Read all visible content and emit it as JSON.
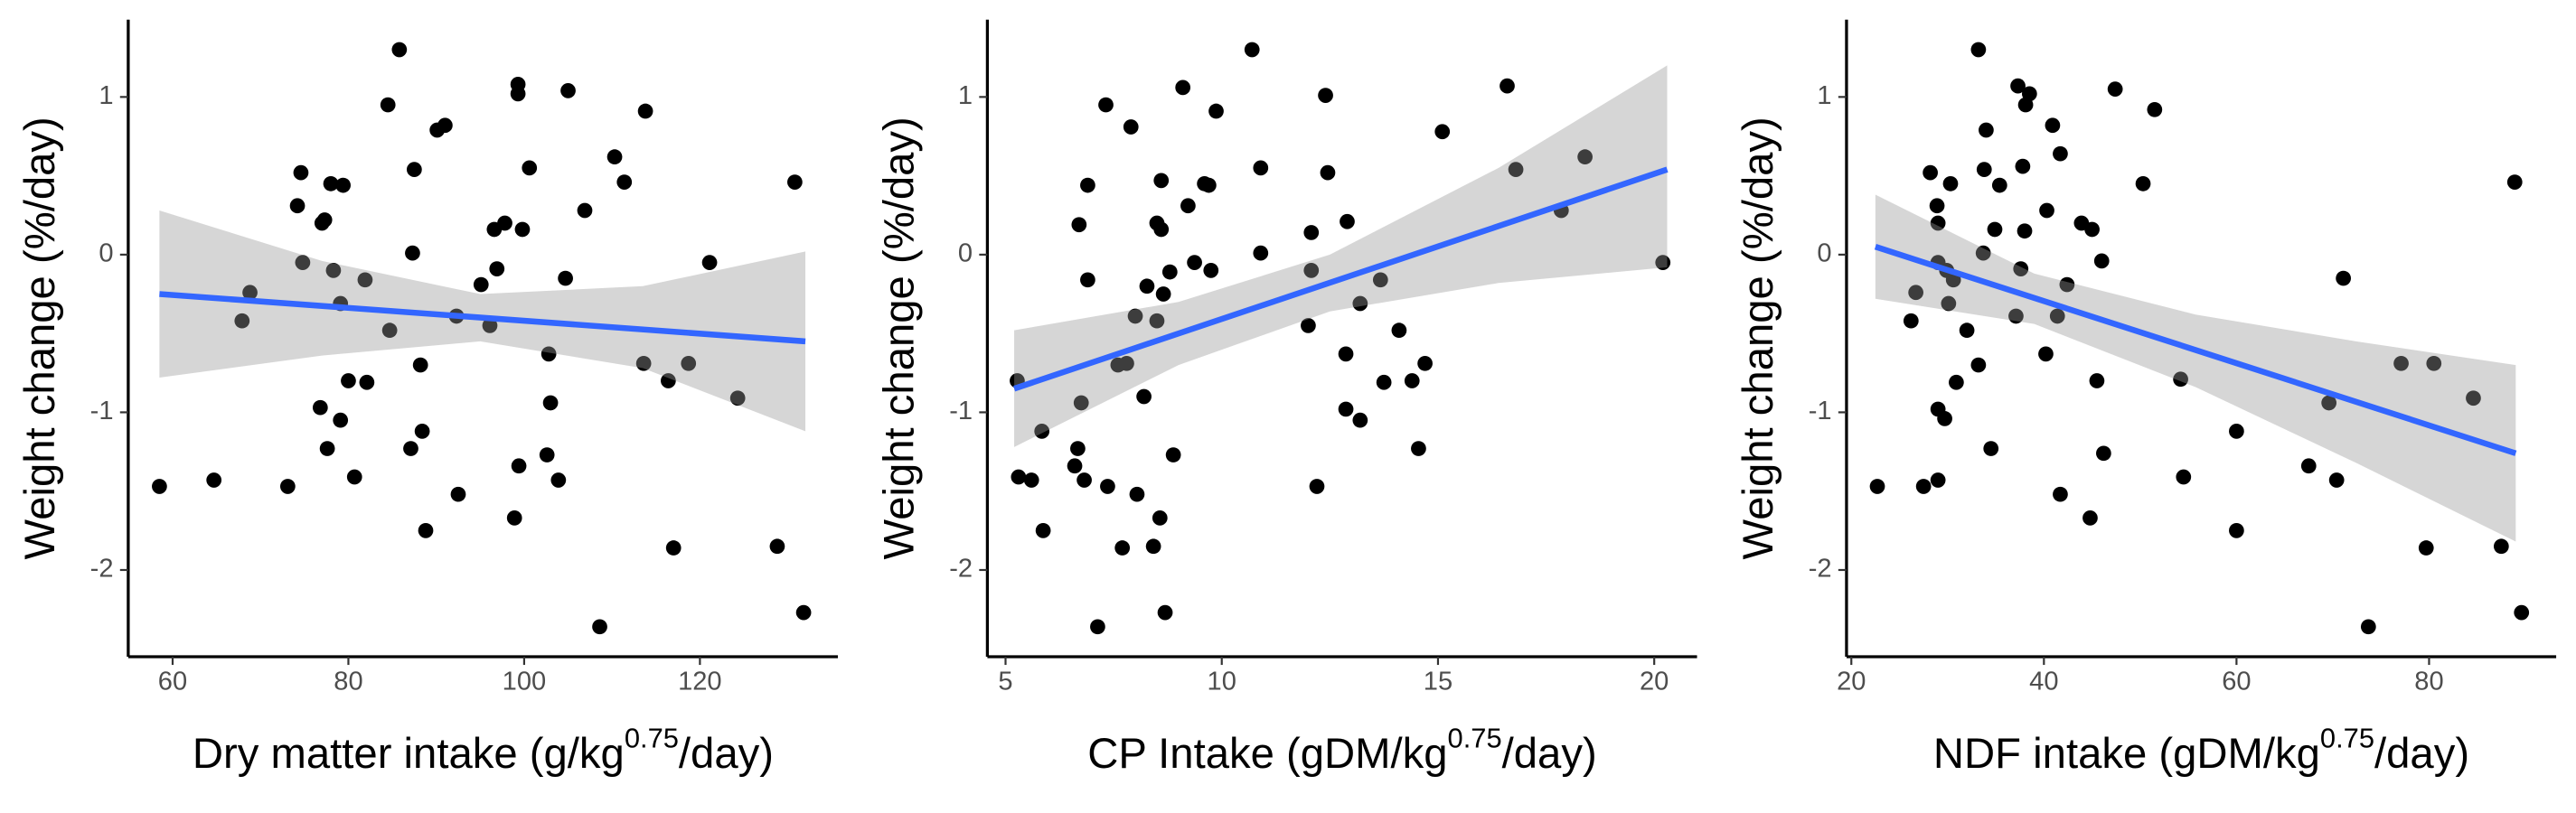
{
  "chart_data": [
    {
      "type": "scatter",
      "ylabel": "Weight change (%/day)",
      "xlabel": {
        "text": "Dry matter intake (g/kg",
        "superscript": "0.75",
        "suffix": "/day)"
      },
      "xlim": [
        54.95,
        135.7
      ],
      "xticks": [
        60,
        80,
        100,
        120
      ],
      "ylim": [
        -2.55,
        1.49
      ],
      "yticks": [
        -2,
        -1,
        0,
        1
      ],
      "color": "#000000",
      "fit_color": "#3366FF",
      "band_color": "#999999",
      "x": [
        58.5,
        64.7,
        67.9,
        68.8,
        73.1,
        74.2,
        74.6,
        74.8,
        77,
        77.3,
        76.8,
        77.6,
        78,
        79.4,
        78.3,
        79.1,
        79.1,
        80,
        80.7,
        81.9,
        82.1,
        84.5,
        84.7,
        85.8,
        87.1,
        87.3,
        87.5,
        88.2,
        88.4,
        88.8,
        90.1,
        91,
        92.3,
        92.5,
        95.1,
        96.1,
        96.6,
        96.9,
        97.8,
        98.9,
        99.3,
        99.3,
        99.4,
        99.8,
        100.6,
        102.8,
        102.6,
        103,
        103.9,
        104.7,
        105,
        106.9,
        108.6,
        110.3,
        111.4,
        113.6,
        113.8,
        116.4,
        117,
        118.7,
        121.1,
        124.3,
        128.8,
        130.8,
        131.8
      ],
      "y": [
        -1.47,
        -1.43,
        -0.42,
        -0.24,
        -1.47,
        0.31,
        0.52,
        -0.05,
        0.2,
        0.22,
        -0.97,
        -1.23,
        0.45,
        0.44,
        -0.1,
        -0.31,
        -1.05,
        -0.8,
        -1.41,
        -0.16,
        -0.81,
        0.95,
        -0.48,
        1.3,
        -1.23,
        0.01,
        0.54,
        -0.7,
        -1.12,
        -1.75,
        0.79,
        0.82,
        -0.39,
        -1.52,
        -0.19,
        -0.45,
        0.16,
        -0.09,
        0.2,
        -1.67,
        1.08,
        1.02,
        -1.34,
        0.16,
        0.55,
        -0.63,
        -1.27,
        -0.94,
        -1.43,
        -0.15,
        1.04,
        0.28,
        -2.36,
        0.62,
        0.46,
        -0.69,
        0.91,
        -0.8,
        -1.86,
        -0.69,
        -0.05,
        -0.91,
        -1.85,
        0.46,
        -2.27
      ],
      "fit": {
        "x": [
          58.5,
          132
        ],
        "y": [
          -0.25,
          -0.55
        ]
      },
      "band": {
        "x": [
          58.5,
          77,
          95,
          113.5,
          132
        ],
        "upper": [
          0.28,
          -0.04,
          -0.25,
          -0.2,
          0.02
        ],
        "lower": [
          -0.78,
          -0.64,
          -0.55,
          -0.72,
          -1.12
        ]
      }
    },
    {
      "type": "scatter",
      "ylabel": "Weight change (%/day)",
      "xlabel": {
        "text": "CP Intake (gDM/kg",
        "superscript": "0.75",
        "suffix": "/day)"
      },
      "xlim": [
        4.58,
        20.99
      ],
      "xticks": [
        5,
        10,
        15,
        20
      ],
      "ylim": [
        -2.55,
        1.49
      ],
      "yticks": [
        -2,
        -1,
        0,
        1
      ],
      "color": "#000000",
      "fit_color": "#3366FF",
      "band_color": "#999999",
      "x": [
        5.27,
        5.3,
        5.6,
        5.84,
        5.87,
        6.6,
        6.67,
        6.7,
        6.75,
        6.82,
        6.9,
        6.9,
        7.13,
        7.32,
        7.36,
        7.6,
        7.7,
        7.8,
        7.9,
        8,
        8.04,
        8.2,
        8.27,
        8.42,
        8.5,
        8.5,
        8.57,
        8.6,
        8.6,
        8.65,
        8.69,
        8.8,
        8.88,
        9.1,
        9.22,
        9.37,
        9.6,
        9.7,
        9.75,
        9.87,
        10.7,
        10.9,
        10.9,
        12,
        12.07,
        12.07,
        12.2,
        12.4,
        12.45,
        12.87,
        12.9,
        12.87,
        13.2,
        13.2,
        13.67,
        13.75,
        14.1,
        14.4,
        14.55,
        14.7,
        15.1,
        16.6,
        16.8,
        17.85,
        18.4,
        20.2
      ],
      "y": [
        -0.8,
        -1.41,
        -1.43,
        -1.12,
        -1.75,
        -1.34,
        -1.23,
        0.19,
        -0.94,
        -1.43,
        0.44,
        -0.16,
        -2.36,
        0.95,
        -1.47,
        -0.7,
        -1.86,
        -0.69,
        0.81,
        -0.39,
        -1.52,
        -0.9,
        -0.2,
        -1.85,
        -0.42,
        0.2,
        -1.67,
        0.47,
        0.16,
        -0.25,
        -2.27,
        -0.11,
        -1.27,
        1.06,
        0.31,
        -0.05,
        0.45,
        0.44,
        -0.1,
        0.91,
        1.3,
        0.55,
        0.01,
        -0.45,
        0.14,
        -0.1,
        -1.47,
        1.01,
        0.52,
        -0.63,
        0.21,
        -0.98,
        -1.05,
        -0.31,
        -0.16,
        -0.81,
        -0.48,
        -0.8,
        -1.23,
        -0.69,
        0.78,
        1.07,
        0.54,
        0.28,
        0.62,
        -0.05
      ],
      "fit": {
        "x": [
          5.2,
          20.3
        ],
        "y": [
          -0.85,
          0.54
        ]
      },
      "band": {
        "x": [
          5.2,
          9,
          12.5,
          16.4,
          20.3
        ],
        "upper": [
          -0.48,
          -0.3,
          0.0,
          0.55,
          1.2
        ],
        "lower": [
          -1.22,
          -0.7,
          -0.36,
          -0.18,
          -0.08
        ]
      }
    },
    {
      "type": "scatter",
      "ylabel": "Weight change (%/day)",
      "xlabel": {
        "text": "NDF intake (gDM/kg",
        "superscript": "0.75",
        "suffix": "/day)"
      },
      "xlim": [
        19.5,
        93.2
      ],
      "xticks": [
        20,
        40,
        60,
        80
      ],
      "ylim": [
        -2.55,
        1.49
      ],
      "yticks": [
        -2,
        -1,
        0,
        1
      ],
      "color": "#000000",
      "fit_color": "#3366FF",
      "band_color": "#999999",
      "x": [
        22.7,
        26.7,
        26.2,
        27.5,
        28.2,
        28.9,
        29,
        29,
        29,
        29,
        29.7,
        29.9,
        30.1,
        30.3,
        30.6,
        30.9,
        32,
        33.2,
        33.2,
        33.7,
        33.8,
        34,
        34.5,
        34.9,
        35.4,
        37.1,
        37.3,
        37.6,
        37.8,
        38,
        38.1,
        38.5,
        40.2,
        40.3,
        40.9,
        41.4,
        41.7,
        41.7,
        42.4,
        43.9,
        44.8,
        45,
        45.5,
        46,
        46.2,
        47.4,
        50.3,
        51.5,
        54.2,
        54.5,
        60,
        60,
        67.5,
        69.6,
        70.4,
        71.1,
        73.7,
        77.1,
        79.7,
        80.5,
        84.6,
        87.5,
        88.9,
        89.6
      ],
      "y": [
        -1.47,
        -0.24,
        -0.42,
        -1.47,
        0.52,
        0.31,
        0.2,
        -0.05,
        -0.98,
        -1.43,
        -1.04,
        -0.1,
        -0.31,
        0.45,
        -0.16,
        -0.81,
        -0.48,
        1.3,
        -0.7,
        0.01,
        0.54,
        0.79,
        -1.23,
        0.16,
        0.44,
        -0.39,
        1.07,
        -0.09,
        0.56,
        0.15,
        0.95,
        1.02,
        -0.63,
        0.28,
        0.82,
        -0.39,
        -1.52,
        0.64,
        -0.19,
        0.2,
        -1.67,
        0.16,
        -0.8,
        -0.04,
        -1.26,
        1.05,
        0.45,
        0.92,
        -0.79,
        -1.41,
        -1.12,
        -1.75,
        -1.34,
        -0.94,
        -1.43,
        -0.15,
        -2.36,
        -0.69,
        -1.86,
        -0.69,
        -0.91,
        -1.85,
        0.46,
        -2.27
      ],
      "fit": {
        "x": [
          22.5,
          89
        ],
        "y": [
          0.05,
          -1.26
        ]
      },
      "band": {
        "x": [
          22.5,
          39,
          55.75,
          72.4,
          89
        ],
        "upper": [
          0.38,
          -0.12,
          -0.38,
          -0.55,
          -0.7
        ],
        "lower": [
          -0.28,
          -0.44,
          -0.84,
          -1.32,
          -1.82
        ]
      }
    }
  ]
}
